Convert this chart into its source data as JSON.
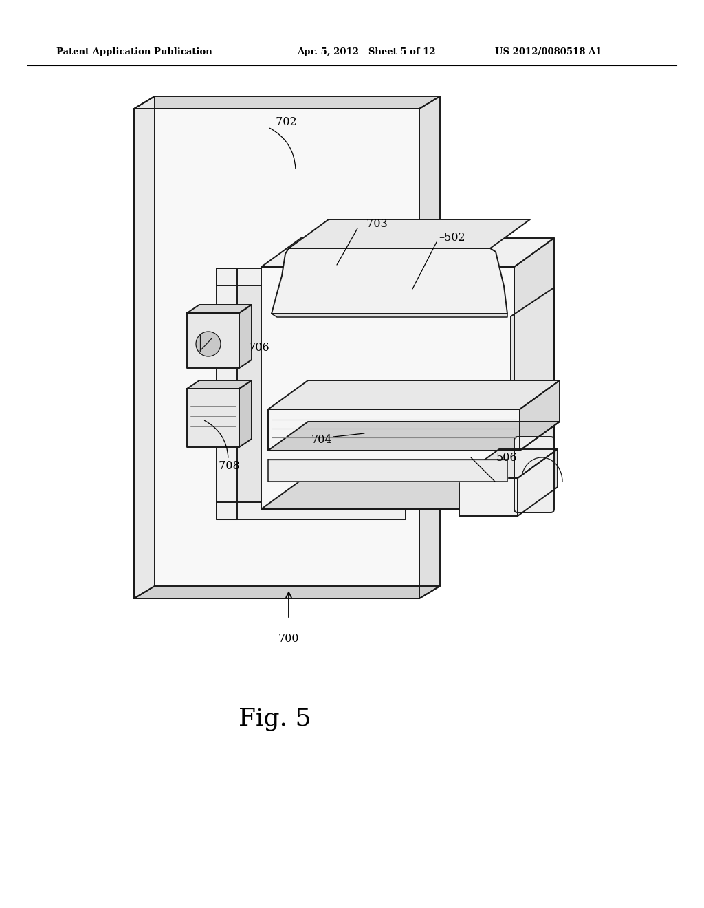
{
  "background_color": "#ffffff",
  "header_left": "Patent Application Publication",
  "header_center": "Apr. 5, 2012   Sheet 5 of 12",
  "header_right": "US 2012/0080518 A1",
  "figure_label": "Fig. 5",
  "line_color": "#1a1a1a",
  "lw_main": 1.4,
  "lw_thin": 0.8,
  "fill_white": "#ffffff",
  "fill_light": "#f0f0f0",
  "fill_mid": "#d8d8d8",
  "fill_dark": "#b8b8b8"
}
